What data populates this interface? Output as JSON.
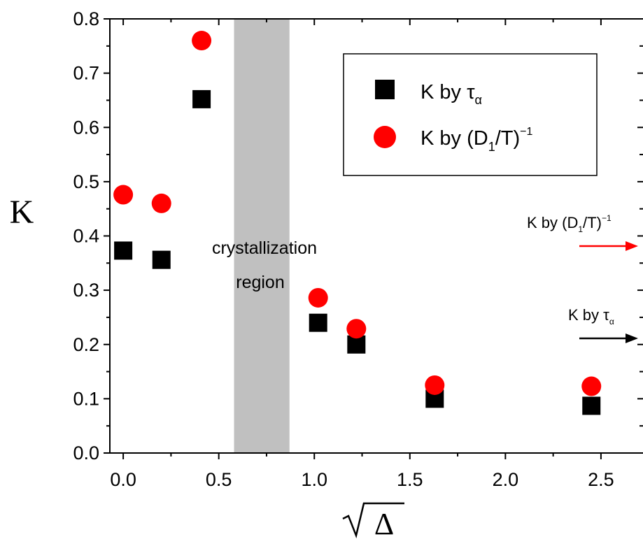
{
  "chart_data": {
    "type": "scatter",
    "xlabel": "Δ",
    "xlabel_sqrt": true,
    "ylabel": "K",
    "xlim": [
      -0.07,
      2.72
    ],
    "ylim": [
      0.0,
      0.8
    ],
    "xticks": [
      "0.0",
      "0.5",
      "1.0",
      "1.5",
      "2.0",
      "2.5"
    ],
    "yticks": [
      "0.0",
      "0.1",
      "0.2",
      "0.3",
      "0.4",
      "0.5",
      "0.6",
      "0.7",
      "0.8"
    ],
    "grid": false,
    "legend_position": "top-right",
    "series": [
      {
        "name": "K by τα",
        "marker": "square",
        "color": "#000000",
        "x": [
          0.0,
          0.2,
          0.41,
          1.02,
          1.22,
          1.63,
          2.45
        ],
        "y": [
          0.373,
          0.356,
          0.652,
          0.24,
          0.2,
          0.1,
          0.087
        ]
      },
      {
        "name": "K by (D1/T)^-1",
        "marker": "circle",
        "color": "#ff0000",
        "x": [
          0.0,
          0.2,
          0.41,
          1.02,
          1.22,
          1.63,
          2.45
        ],
        "y": [
          0.476,
          0.46,
          0.76,
          0.286,
          0.229,
          0.125,
          0.123
        ]
      }
    ],
    "shaded_region": {
      "x_start": 0.58,
      "x_end": 0.87,
      "color": "#c0c0c0",
      "label_line1": "crystallization",
      "label_line2": "region"
    },
    "arrows": [
      {
        "label": "K by (D1/T)^-1",
        "color": "#ff0000"
      },
      {
        "label": "K by τα",
        "color": "#000000"
      }
    ]
  },
  "legend_parts": {
    "tau_prefix": "K by τ",
    "tau_sub": "α",
    "d_prefix": "K by (D",
    "d_sub": "1",
    "d_mid": "/T)",
    "d_sup": "−1"
  }
}
